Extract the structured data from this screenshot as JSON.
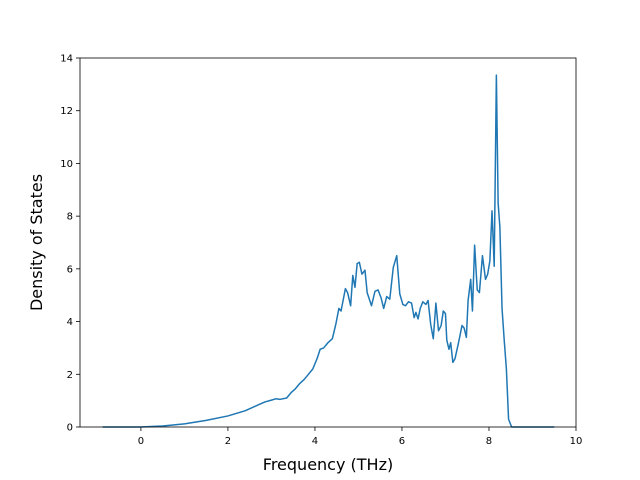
{
  "chart_data": {
    "type": "line",
    "xlabel": "Frequency (THz)",
    "ylabel": "Density of States",
    "xlim": [
      -1.4,
      10
    ],
    "ylim": [
      0,
      14
    ],
    "xticks": [
      0,
      2,
      4,
      6,
      8,
      10
    ],
    "yticks": [
      0,
      2,
      4,
      6,
      8,
      10,
      12,
      14
    ],
    "grid": false,
    "legend": "none",
    "series": [
      {
        "color": "#1f77b4",
        "x": [
          -0.88,
          0.0,
          0.5,
          1.0,
          1.5,
          2.0,
          2.4,
          2.7,
          2.85,
          3.0,
          3.1,
          3.2,
          3.35,
          3.45,
          3.55,
          3.65,
          3.75,
          3.85,
          3.95,
          4.05,
          4.12,
          4.2,
          4.3,
          4.4,
          4.48,
          4.55,
          4.6,
          4.7,
          4.75,
          4.82,
          4.87,
          4.92,
          4.97,
          5.02,
          5.08,
          5.15,
          5.2,
          5.3,
          5.38,
          5.45,
          5.52,
          5.58,
          5.65,
          5.72,
          5.8,
          5.88,
          5.95,
          6.02,
          6.08,
          6.15,
          6.22,
          6.28,
          6.32,
          6.37,
          6.42,
          6.48,
          6.55,
          6.6,
          6.66,
          6.72,
          6.78,
          6.84,
          6.9,
          6.95,
          7.0,
          7.03,
          7.08,
          7.12,
          7.17,
          7.22,
          7.3,
          7.38,
          7.43,
          7.48,
          7.52,
          7.58,
          7.62,
          7.67,
          7.73,
          7.78,
          7.85,
          7.92,
          7.97,
          8.02,
          8.07,
          8.12,
          8.17,
          8.21,
          8.25,
          8.3,
          8.35,
          8.4,
          8.45,
          8.52,
          8.6,
          8.68,
          9.5
        ],
        "y": [
          0.0,
          0.0,
          0.04,
          0.12,
          0.25,
          0.42,
          0.62,
          0.84,
          0.95,
          1.02,
          1.07,
          1.05,
          1.1,
          1.3,
          1.45,
          1.65,
          1.8,
          2.0,
          2.2,
          2.6,
          2.95,
          3.0,
          3.2,
          3.35,
          3.9,
          4.5,
          4.4,
          5.25,
          5.1,
          4.6,
          5.75,
          5.3,
          6.2,
          6.25,
          5.8,
          5.95,
          5.1,
          4.6,
          5.15,
          5.2,
          4.9,
          4.5,
          4.95,
          4.85,
          6.05,
          6.5,
          5.05,
          4.65,
          4.6,
          4.75,
          4.7,
          4.15,
          4.35,
          4.1,
          4.5,
          4.75,
          4.65,
          4.8,
          3.9,
          3.35,
          4.7,
          3.65,
          3.85,
          4.4,
          4.3,
          3.3,
          2.95,
          3.2,
          2.45,
          2.6,
          3.2,
          3.85,
          3.75,
          3.4,
          4.8,
          5.6,
          4.4,
          6.9,
          5.2,
          5.1,
          6.5,
          5.6,
          5.8,
          6.3,
          8.2,
          6.1,
          13.35,
          8.5,
          7.6,
          4.5,
          3.3,
          2.2,
          0.3,
          0.0,
          0.0,
          0.0,
          0.0
        ]
      }
    ]
  }
}
